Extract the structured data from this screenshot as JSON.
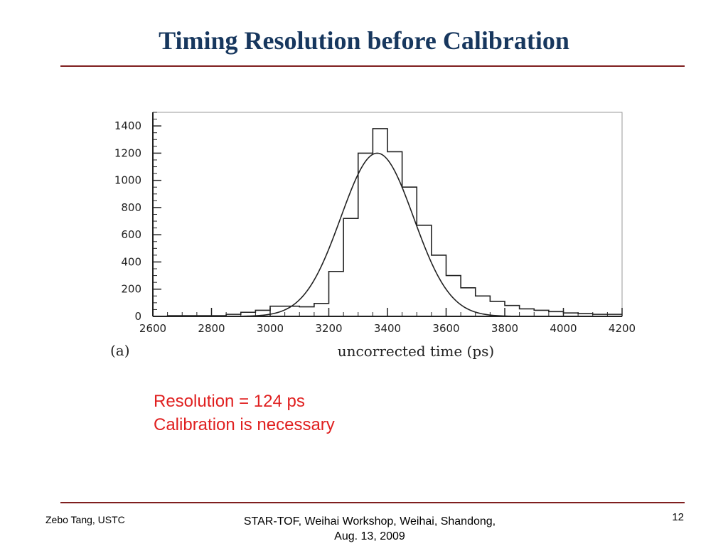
{
  "slide": {
    "title": "Timing Resolution before Calibration",
    "notes": [
      "Resolution = 124 ps",
      "Calibration is necessary"
    ],
    "footer_left": "Zebo Tang, USTC",
    "footer_center": [
      "STAR-TOF, Weihai Workshop, Weihai, Shandong,",
      "Aug. 13, 2009"
    ],
    "page_number": "12"
  },
  "colors": {
    "title": "#17375e",
    "rule": "#7f1f1f",
    "notes": "#e02020",
    "plot": "#222222"
  },
  "chart_data": {
    "type": "bar",
    "subtype": "histogram-with-gaussian-fit",
    "panel_label": "(a)",
    "title": "",
    "xlabel": "uncorrected time (ps)",
    "ylabel": "",
    "xlim": [
      2600,
      4200
    ],
    "ylim": [
      0,
      1500
    ],
    "xticks": [
      2600,
      2800,
      3000,
      3200,
      3400,
      3600,
      3800,
      4000,
      4200
    ],
    "yticks": [
      0,
      200,
      400,
      600,
      800,
      1000,
      1200,
      1400
    ],
    "grid": false,
    "bin_width": 50,
    "bin_starts": [
      2600,
      2650,
      2700,
      2750,
      2800,
      2850,
      2900,
      2950,
      3000,
      3050,
      3100,
      3150,
      3200,
      3250,
      3300,
      3350,
      3400,
      3450,
      3500,
      3550,
      3600,
      3650,
      3700,
      3750,
      3800,
      3850,
      3900,
      3950,
      4000,
      4050,
      4100,
      4150
    ],
    "values": [
      0,
      5,
      5,
      5,
      5,
      15,
      30,
      45,
      75,
      75,
      70,
      95,
      330,
      720,
      1200,
      1380,
      1210,
      950,
      670,
      450,
      300,
      210,
      150,
      110,
      80,
      55,
      45,
      35,
      25,
      20,
      15,
      15
    ],
    "fit": {
      "function": "gaussian",
      "amplitude": 1200,
      "mean": 3365,
      "sigma": 124
    }
  }
}
